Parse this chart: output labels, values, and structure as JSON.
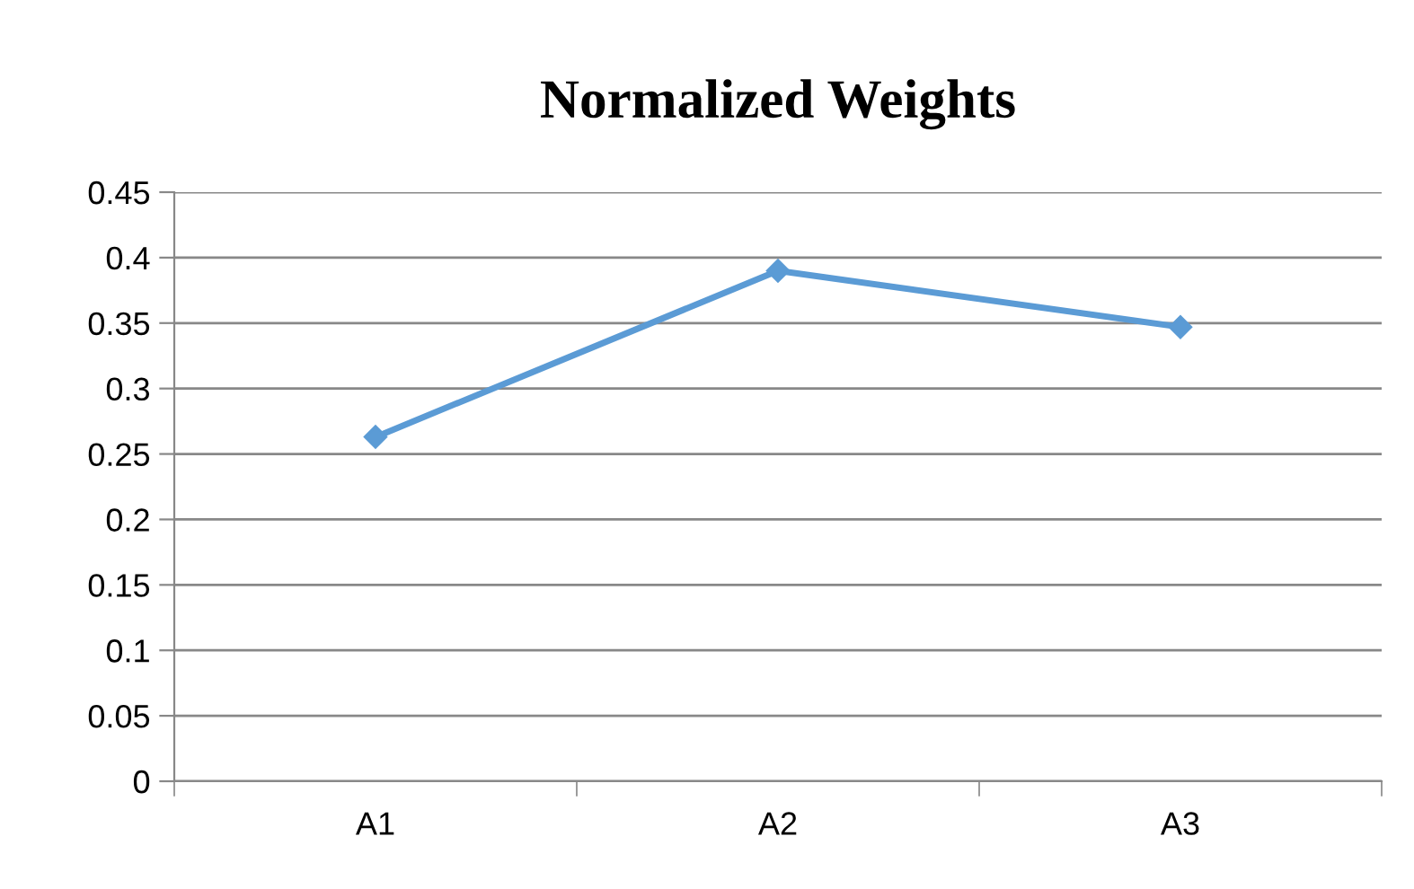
{
  "chart_data": {
    "type": "line",
    "title": "Normalized Weights",
    "categories": [
      "A1",
      "A2",
      "A3"
    ],
    "series": [
      {
        "color": "#5b9bd5",
        "values": [
          0.263,
          0.39,
          0.347
        ]
      }
    ],
    "ylim": [
      0,
      0.45
    ],
    "yticks": [
      0,
      0.05,
      0.1,
      0.15,
      0.2,
      0.25,
      0.3,
      0.35,
      0.4,
      0.45
    ],
    "grid": "y",
    "legend": false,
    "marker": "diamond",
    "line_style": "solid"
  }
}
